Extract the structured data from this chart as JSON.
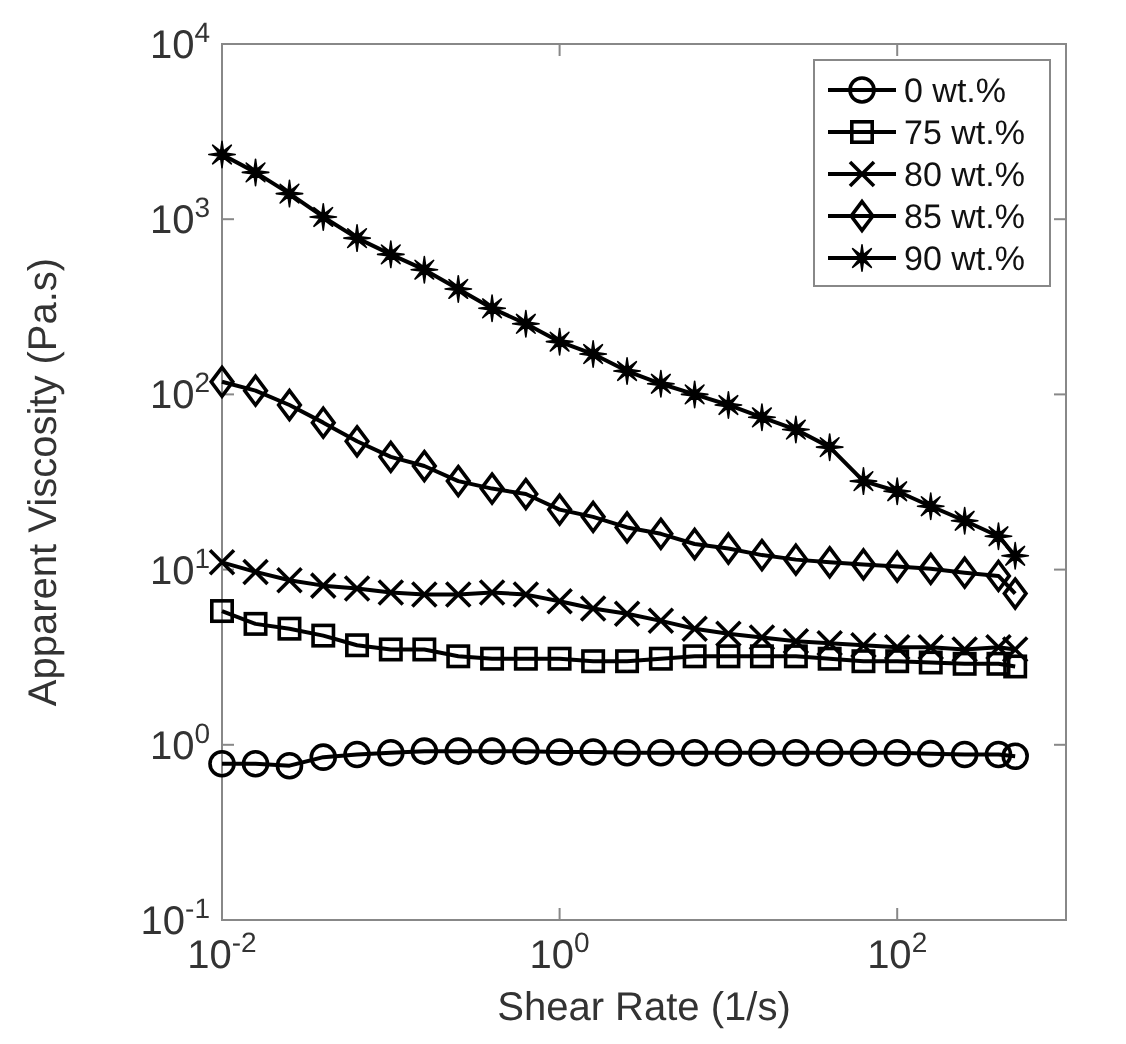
{
  "chart_data": {
    "type": "line",
    "xlabel": "Shear Rate (1/s)",
    "ylabel": "Apparent Viscosity (Pa.s)",
    "log": "xy",
    "legend": "top right",
    "grid": false,
    "line_style": "solid",
    "x": [
      0.01,
      0.0158,
      0.0251,
      0.0398,
      0.0631,
      0.1,
      0.158,
      0.251,
      0.398,
      0.631,
      1,
      1.58,
      2.51,
      3.98,
      6.31,
      10,
      15.8,
      25.1,
      39.8,
      63.1,
      100,
      158,
      251,
      398,
      500
    ],
    "xlim": [
      0.01,
      1000
    ],
    "xticks": [
      {
        "value": 0.01,
        "label": "10$^{-2}$"
      },
      {
        "value": 1,
        "label": "10$^{0}$"
      },
      {
        "value": 100,
        "label": "10$^{2}$"
      }
    ],
    "ylim": [
      0.1,
      10000
    ],
    "yticks": [
      {
        "value": 0.1,
        "label": "10$^{-1}$"
      },
      {
        "value": 1,
        "label": "10$^{0}$"
      },
      {
        "value": 10,
        "label": "10$^{1}$"
      },
      {
        "value": 100,
        "label": "10$^{2}$"
      },
      {
        "value": 1000,
        "label": "10$^{3}$"
      },
      {
        "value": 10000,
        "label": "10$^{4}$"
      }
    ],
    "series": [
      {
        "name": "0 wt.%",
        "color": "#000000",
        "marker": "circle",
        "values": [
          0.78,
          0.78,
          0.76,
          0.85,
          0.88,
          0.9,
          0.92,
          0.92,
          0.92,
          0.92,
          0.91,
          0.91,
          0.9,
          0.9,
          0.9,
          0.9,
          0.9,
          0.9,
          0.9,
          0.9,
          0.9,
          0.89,
          0.88,
          0.88,
          0.86
        ]
      },
      {
        "name": "75 wt.%",
        "color": "#000000",
        "marker": "square",
        "values": [
          5.8,
          4.9,
          4.6,
          4.2,
          3.7,
          3.5,
          3.5,
          3.2,
          3.1,
          3.1,
          3.1,
          3.0,
          3.0,
          3.1,
          3.2,
          3.2,
          3.2,
          3.2,
          3.1,
          3.0,
          3.0,
          2.95,
          2.9,
          2.9,
          2.8
        ]
      },
      {
        "name": "80 wt.%",
        "color": "#000000",
        "marker": "cross",
        "values": [
          11,
          9.7,
          8.7,
          8.1,
          7.8,
          7.4,
          7.2,
          7.2,
          7.4,
          7.2,
          6.6,
          6.0,
          5.6,
          5.1,
          4.6,
          4.3,
          4.1,
          3.9,
          3.8,
          3.7,
          3.6,
          3.6,
          3.5,
          3.6,
          3.5
        ]
      },
      {
        "name": "85 wt.%",
        "color": "#000000",
        "marker": "diamond",
        "values": [
          118,
          105,
          87,
          69,
          54,
          44,
          39,
          32,
          29,
          27,
          22,
          20,
          17.4,
          16,
          14,
          13.2,
          12.1,
          11.4,
          11,
          10.7,
          10.4,
          10.1,
          9.6,
          9.2,
          7.3
        ]
      },
      {
        "name": "90 wt.%",
        "color": "#000000",
        "marker": "star",
        "values": [
          2340,
          1850,
          1400,
          1030,
          780,
          630,
          515,
          400,
          310,
          253,
          200,
          170,
          136,
          115,
          100,
          87,
          74,
          63,
          50,
          32,
          28,
          23,
          19,
          15.5,
          12
        ]
      }
    ]
  }
}
